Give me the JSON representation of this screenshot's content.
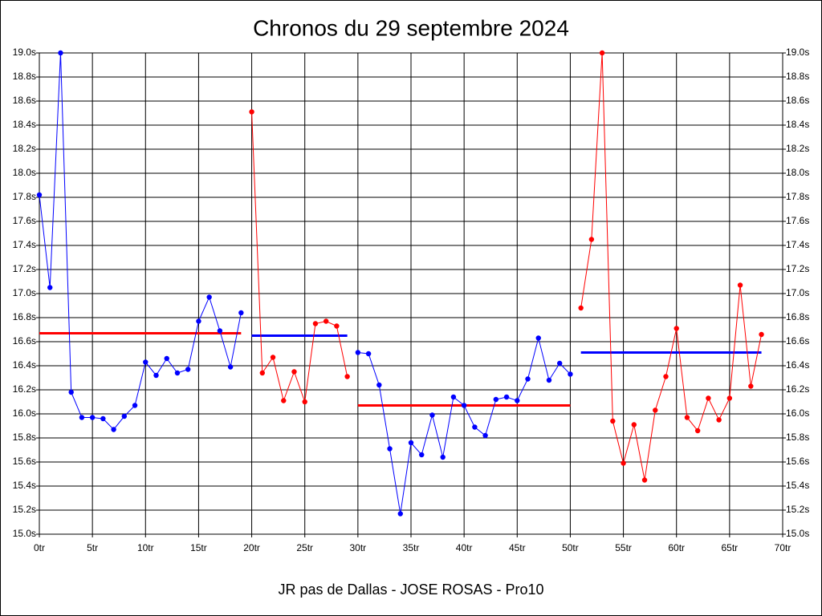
{
  "chart_data": {
    "type": "line",
    "title": "Chronos du 29 septembre 2024",
    "xlabel": "JR pas de Dallas - JOSE ROSAS - Pro10",
    "xlim": [
      0,
      70
    ],
    "ylim": [
      15.0,
      19.0
    ],
    "grid": true,
    "xticks": [
      {
        "value": 0,
        "label": "0tr"
      },
      {
        "value": 5,
        "label": "5tr"
      },
      {
        "value": 10,
        "label": "10tr"
      },
      {
        "value": 15,
        "label": "15tr"
      },
      {
        "value": 20,
        "label": "20tr"
      },
      {
        "value": 25,
        "label": "25tr"
      },
      {
        "value": 30,
        "label": "30tr"
      },
      {
        "value": 35,
        "label": "35tr"
      },
      {
        "value": 40,
        "label": "40tr"
      },
      {
        "value": 45,
        "label": "45tr"
      },
      {
        "value": 50,
        "label": "50tr"
      },
      {
        "value": 55,
        "label": "55tr"
      },
      {
        "value": 60,
        "label": "60tr"
      },
      {
        "value": 65,
        "label": "65tr"
      },
      {
        "value": 70,
        "label": "70tr"
      }
    ],
    "yticks": [
      {
        "value": 15.0,
        "label": "15.0s"
      },
      {
        "value": 15.2,
        "label": "15.2s"
      },
      {
        "value": 15.4,
        "label": "15.4s"
      },
      {
        "value": 15.6,
        "label": "15.6s"
      },
      {
        "value": 15.8,
        "label": "15.8s"
      },
      {
        "value": 16.0,
        "label": "16.0s"
      },
      {
        "value": 16.2,
        "label": "16.2s"
      },
      {
        "value": 16.4,
        "label": "16.4s"
      },
      {
        "value": 16.6,
        "label": "16.6s"
      },
      {
        "value": 16.8,
        "label": "16.8s"
      },
      {
        "value": 17.0,
        "label": "17.0s"
      },
      {
        "value": 17.2,
        "label": "17.2s"
      },
      {
        "value": 17.4,
        "label": "17.4s"
      },
      {
        "value": 17.6,
        "label": "17.6s"
      },
      {
        "value": 17.8,
        "label": "17.8s"
      },
      {
        "value": 18.0,
        "label": "18.0s"
      },
      {
        "value": 18.2,
        "label": "18.2s"
      },
      {
        "value": 18.4,
        "label": "18.4s"
      },
      {
        "value": 18.6,
        "label": "18.6s"
      },
      {
        "value": 18.8,
        "label": "18.8s"
      },
      {
        "value": 19.0,
        "label": "19.0s"
      }
    ],
    "series": [
      {
        "color": "#0000ff",
        "x": [
          0,
          1,
          2,
          3,
          4,
          5,
          6,
          7,
          8,
          9,
          10,
          11,
          12,
          13,
          14,
          15,
          16,
          17,
          18,
          19
        ],
        "values": [
          17.82,
          17.05,
          19.0,
          16.18,
          15.97,
          15.97,
          15.96,
          15.87,
          15.98,
          16.07,
          16.43,
          16.32,
          16.46,
          16.34,
          16.37,
          16.77,
          16.97,
          16.69,
          16.39,
          16.84
        ]
      },
      {
        "color": "#ff0000",
        "x": [
          20,
          21,
          22,
          23,
          24,
          25,
          26,
          27,
          28,
          29
        ],
        "values": [
          18.51,
          16.34,
          16.47,
          16.11,
          16.35,
          16.1,
          16.75,
          16.77,
          16.73,
          16.31
        ]
      },
      {
        "color": "#0000ff",
        "x": [
          30,
          31,
          32,
          33,
          34,
          35,
          36,
          37,
          38,
          39,
          40,
          41,
          42,
          43,
          44,
          45,
          46,
          47,
          48,
          49,
          50
        ],
        "values": [
          16.51,
          16.5,
          16.24,
          15.71,
          15.17,
          15.76,
          15.66,
          15.99,
          15.64,
          16.14,
          16.07,
          15.89,
          15.82,
          16.12,
          16.14,
          16.11,
          16.29,
          16.63,
          16.28,
          16.42,
          16.33
        ]
      },
      {
        "color": "#ff0000",
        "x": [
          51,
          52,
          53,
          54,
          55,
          56,
          57,
          58,
          59,
          60,
          61,
          62,
          63,
          64,
          65,
          66,
          67,
          68
        ],
        "values": [
          16.88,
          17.45,
          19.0,
          15.94,
          15.59,
          15.91,
          15.45,
          16.03,
          16.31,
          16.71,
          15.97,
          15.86,
          16.13,
          15.95,
          16.13,
          17.07,
          16.23,
          16.66
        ]
      }
    ],
    "averages": [
      {
        "color": "#ff0000",
        "x": [
          0,
          19
        ],
        "values": [
          16.67,
          16.67
        ]
      },
      {
        "color": "#0000ff",
        "x": [
          20,
          29
        ],
        "values": [
          16.65,
          16.65
        ]
      },
      {
        "color": "#ff0000",
        "x": [
          30,
          50
        ],
        "values": [
          16.07,
          16.07
        ]
      },
      {
        "color": "#0000ff",
        "x": [
          51,
          68
        ],
        "values": [
          16.51,
          16.51
        ]
      }
    ]
  }
}
